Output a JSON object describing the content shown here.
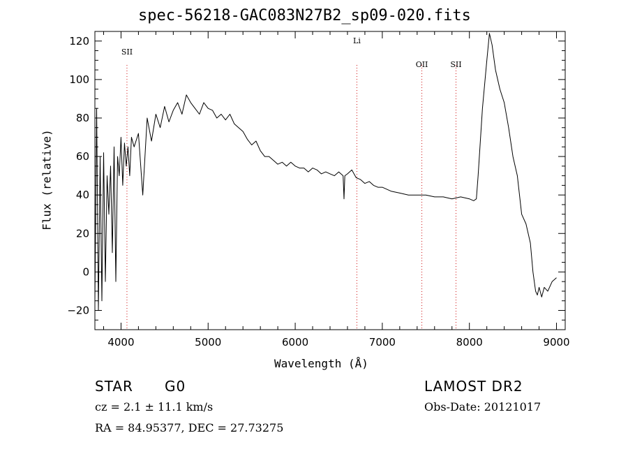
{
  "chart_data": {
    "type": "line",
    "title": "spec-56218-GAC083N27B2_sp09-020.fits",
    "xlabel": "Wavelength (Å)",
    "ylabel": "Flux (relative)",
    "xlim": [
      3700,
      9100
    ],
    "ylim": [
      -30,
      125
    ],
    "xticks": [
      "4000",
      "5000",
      "6000",
      "7000",
      "8000",
      "9000"
    ],
    "yticks": [
      "−20",
      "0",
      "20",
      "40",
      "60",
      "80",
      "100",
      "120"
    ],
    "series": [
      {
        "x": [
          3700,
          3720,
          3740,
          3760,
          3780,
          3800,
          3820,
          3840,
          3860,
          3880,
          3900,
          3920,
          3940,
          3960,
          3980,
          4000,
          4020,
          4040,
          4060,
          4080,
          4100,
          4120,
          4150,
          4200,
          4250,
          4300,
          4350,
          4400,
          4450,
          4500,
          4550,
          4600,
          4650,
          4700,
          4750,
          4800,
          4850,
          4900,
          4950,
          5000,
          5050,
          5100,
          5150,
          5200,
          5250,
          5300,
          5350,
          5400,
          5450,
          5500,
          5550,
          5600,
          5650,
          5700,
          5750,
          5800,
          5850,
          5900,
          5950,
          6000,
          6050,
          6100,
          6150,
          6200,
          6250,
          6300,
          6350,
          6400,
          6450,
          6500,
          6550,
          6560,
          6570,
          6600,
          6650,
          6700,
          6750,
          6800,
          6850,
          6900,
          6950,
          7000,
          7100,
          7200,
          7300,
          7400,
          7500,
          7600,
          7700,
          7800,
          7900,
          8000,
          8050,
          8080,
          8100,
          8150,
          8200,
          8230,
          8260,
          8300,
          8350,
          8400,
          8450,
          8500,
          8550,
          8600,
          8650,
          8700,
          8730,
          8760,
          8780,
          8800,
          8830,
          8860,
          8900,
          8950,
          9000
        ],
        "y": [
          -15,
          85,
          -20,
          60,
          -15,
          62,
          -5,
          50,
          30,
          55,
          10,
          65,
          -5,
          60,
          50,
          70,
          45,
          67,
          55,
          65,
          50,
          70,
          65,
          72,
          40,
          80,
          68,
          82,
          75,
          86,
          78,
          84,
          88,
          82,
          92,
          88,
          85,
          82,
          88,
          85,
          84,
          80,
          82,
          79,
          82,
          77,
          75,
          73,
          69,
          66,
          68,
          63,
          60,
          60,
          58,
          56,
          57,
          55,
          57,
          55,
          54,
          54,
          52,
          54,
          53,
          51,
          52,
          51,
          50,
          52,
          50,
          38,
          50,
          51,
          53,
          49,
          48,
          46,
          47,
          45,
          44,
          44,
          42,
          41,
          40,
          40,
          40,
          39,
          39,
          38,
          39,
          38,
          37,
          38,
          50,
          85,
          110,
          124,
          118,
          105,
          95,
          88,
          75,
          60,
          50,
          30,
          25,
          15,
          0,
          -10,
          -12,
          -8,
          -13,
          -8,
          -10,
          -5,
          -3
        ]
      }
    ],
    "lines": [
      {
        "label": "SII",
        "x": 4068
      },
      {
        "label": "Li",
        "x": 6708
      },
      {
        "label": "OII",
        "x": 7454
      },
      {
        "label": "SII",
        "x": 7846
      }
    ]
  },
  "info": {
    "type_label": "STAR",
    "subclass": "G0",
    "survey": "LAMOST DR2",
    "cz": "cz = 2.1 ± 11.1 km/s",
    "obs_date": "Obs-Date: 20121017",
    "radec": "RA =  84.95377, DEC =  27.73275"
  }
}
